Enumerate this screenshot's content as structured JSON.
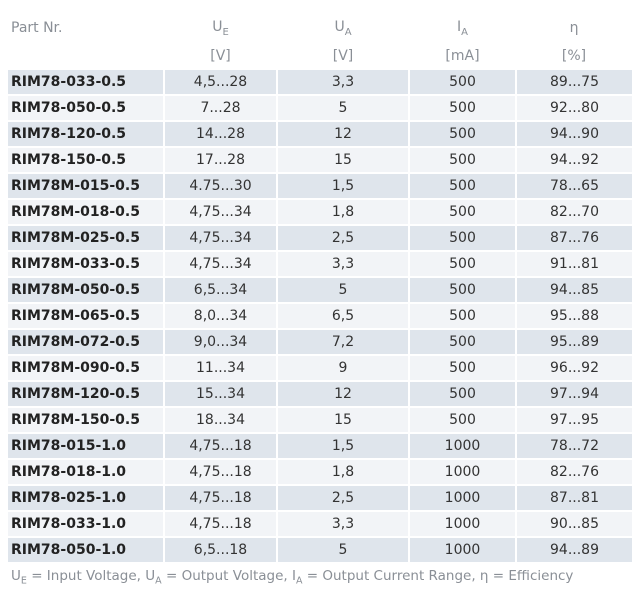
{
  "header": {
    "part": "Part Nr.",
    "ue": {
      "symbol": "U",
      "sub": "E",
      "unit": "[V]"
    },
    "ua": {
      "symbol": "U",
      "sub": "A",
      "unit": "[V]"
    },
    "ia": {
      "symbol": "I",
      "sub": "A",
      "unit": "[mA]"
    },
    "eta": {
      "symbol": "η",
      "unit": "[%]"
    }
  },
  "rows": [
    [
      "RIM78-033-0.5",
      "4,5...28",
      "3,3",
      "500",
      "89...75"
    ],
    [
      "RIM78-050-0.5",
      "7...28",
      "5",
      "500",
      "92...80"
    ],
    [
      "RIM78-120-0.5",
      "14...28",
      "12",
      "500",
      "94...90"
    ],
    [
      "RIM78-150-0.5",
      "17...28",
      "15",
      "500",
      "94...92"
    ],
    [
      "RIM78M-015-0.5",
      "4.75...30",
      "1,5",
      "500",
      "78...65"
    ],
    [
      "RIM78M-018-0.5",
      "4,75...34",
      "1,8",
      "500",
      "82...70"
    ],
    [
      "RIM78M-025-0.5",
      "4,75...34",
      "2,5",
      "500",
      "87...76"
    ],
    [
      "RIM78M-033-0.5",
      "4,75...34",
      "3,3",
      "500",
      "91...81"
    ],
    [
      "RIM78M-050-0.5",
      "6,5...34",
      "5",
      "500",
      "94...85"
    ],
    [
      "RIM78M-065-0.5",
      "8,0...34",
      "6,5",
      "500",
      "95...88"
    ],
    [
      "RIM78M-072-0.5",
      "9,0...34",
      "7,2",
      "500",
      "95...89"
    ],
    [
      "RIM78M-090-0.5",
      "11...34",
      "9",
      "500",
      "96...92"
    ],
    [
      "RIM78M-120-0.5",
      "15...34",
      "12",
      "500",
      "97...94"
    ],
    [
      "RIM78M-150-0.5",
      "18...34",
      "15",
      "500",
      "97...95"
    ],
    [
      "RIM78-015-1.0",
      "4,75...18",
      "1,5",
      "1000",
      "78...72"
    ],
    [
      "RIM78-018-1.0",
      "4,75...18",
      "1,8",
      "1000",
      "82...76"
    ],
    [
      "RIM78-025-1.0",
      "4,75...18",
      "2,5",
      "1000",
      "87...81"
    ],
    [
      "RIM78-033-1.0",
      "4,75...18",
      "3,3",
      "1000",
      "90...85"
    ],
    [
      "RIM78-050-1.0",
      "6,5...18",
      "5",
      "1000",
      "94...89"
    ]
  ],
  "legend": {
    "ue_symbol": "U",
    "ue_sub": "E",
    "ue_text": " = Input Voltage, ",
    "ua_symbol": "U",
    "ua_sub": "A",
    "ua_text": " = Output Voltage, ",
    "ia_symbol": "I",
    "ia_sub": "A",
    "ia_text": " = Output Current Range, ",
    "eta_symbol": "η",
    "eta_text": " = Efficiency"
  },
  "colors": {
    "row_odd": "#dfe5ec",
    "row_even": "#f2f4f7",
    "header_text": "#8a8f96"
  }
}
